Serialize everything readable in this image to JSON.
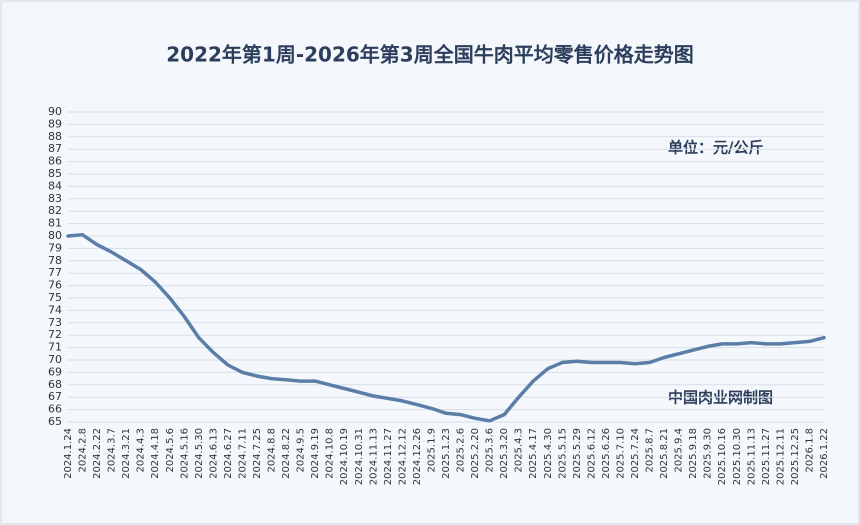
{
  "chart_data": {
    "type": "line",
    "title": "2022年第1周-2026年第3周全国牛肉平均零售价格走势图",
    "unit_note": "单位：元/公斤",
    "source_note": "中国肉业网制图",
    "categories": [
      "2024.1.24",
      "2024.2.8",
      "2024.2.22",
      "2024.3.7",
      "2024.3.21",
      "2024.4.3",
      "2024.4.18",
      "2024.5.6",
      "2024.5.16",
      "2024.5.30",
      "2024.6.13",
      "2024.6.27",
      "2024.7.11",
      "2024.7.25",
      "2024.8.8",
      "2024.8.22",
      "2024.9.5",
      "2024.9.19",
      "2024.10.8",
      "2024.10.19",
      "2024.10.31",
      "2024.11.13",
      "2024.11.27",
      "2024.12.12",
      "2024.12.26",
      "2025.1.9",
      "2025.1.23",
      "2025.2.6",
      "2025.2.20",
      "2025.3.6",
      "2025.3.20",
      "2025.4.3",
      "2025.4.17",
      "2025.4.30",
      "2025.5.15",
      "2025.5.29",
      "2025.6.12",
      "2025.6.26",
      "2025.7.10",
      "2025.7.24",
      "2025.8.7",
      "2025.8.21",
      "2025.9.4",
      "2025.9.18",
      "2025.9.30",
      "2025.10.16",
      "2025.10.30",
      "2025.11.13",
      "2025.11.27",
      "2025.12.11",
      "2025.12.25",
      "2026.1.8",
      "2026.1.22"
    ],
    "values": [
      80.0,
      80.1,
      79.3,
      78.7,
      78.0,
      77.3,
      76.3,
      75.0,
      73.5,
      71.8,
      70.6,
      69.6,
      69.0,
      68.7,
      68.5,
      68.4,
      68.3,
      68.3,
      68.0,
      67.7,
      67.4,
      67.1,
      66.9,
      66.7,
      66.4,
      66.1,
      65.7,
      65.6,
      65.3,
      65.1,
      65.6,
      67.0,
      68.3,
      69.3,
      69.8,
      69.9,
      69.8,
      69.8,
      69.8,
      69.7,
      69.8,
      70.2,
      70.5,
      70.8,
      71.1,
      71.3,
      71.3,
      71.4,
      71.3,
      71.3,
      71.4,
      71.5,
      71.8
    ],
    "color": "#5a7ea8",
    "ylim": [
      65,
      90
    ],
    "yticks": [
      65,
      66,
      67,
      68,
      69,
      70,
      71,
      72,
      73,
      74,
      75,
      76,
      77,
      78,
      79,
      80,
      81,
      82,
      83,
      84,
      85,
      86,
      87,
      88,
      89,
      90
    ],
    "grid": true
  }
}
